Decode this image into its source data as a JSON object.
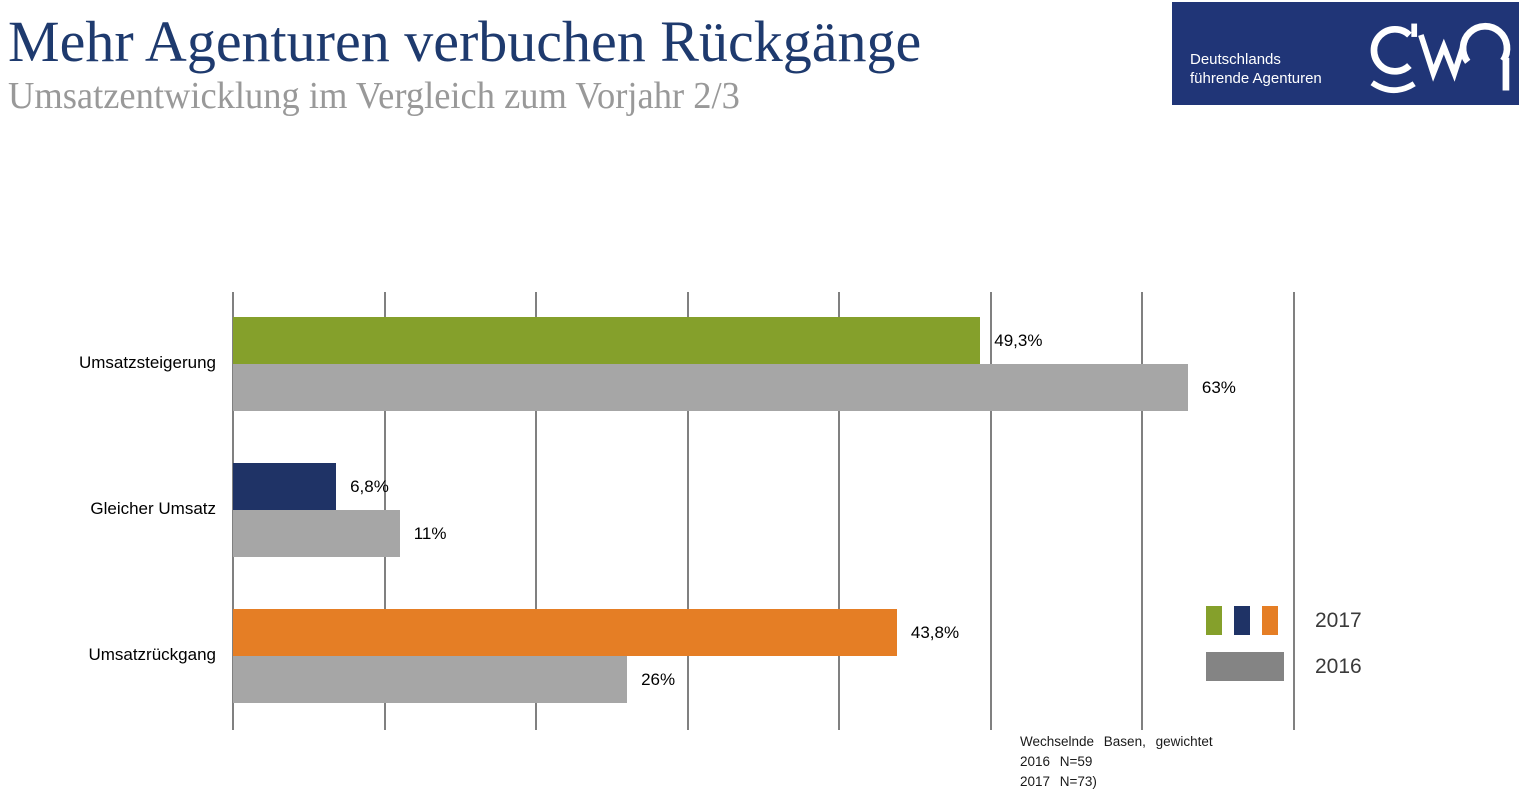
{
  "header": {
    "title": "Mehr Agenturen verbuchen Rückgänge",
    "subtitle": "Umsatzentwicklung im Vergleich zum Vorjahr 2/3"
  },
  "logo": {
    "tagline_line1": "Deutschlands",
    "tagline_line2": "führende Agenturen",
    "brand": "gwa",
    "background_color": "#203577"
  },
  "chart_data": {
    "type": "bar",
    "orientation": "horizontal",
    "title": "Umsatzentwicklung im Vergleich zum Vorjahr",
    "xlabel": "",
    "ylabel": "",
    "xlim": [
      0,
      70
    ],
    "gridline_interval": 10,
    "grid": true,
    "categories": [
      "Umsatzsteigerung",
      "Gleicher Umsatz",
      "Umsatzrückgang"
    ],
    "series": [
      {
        "name": "2017",
        "values": [
          49.3,
          6.8,
          43.8
        ],
        "labels": [
          "49,3%",
          "6,8%",
          "43,8%"
        ],
        "colors": [
          "#85A02B",
          "#1F3366",
          "#E57E25"
        ]
      },
      {
        "name": "2016",
        "values": [
          63,
          11,
          26
        ],
        "labels": [
          "63%",
          "11%",
          "26%"
        ],
        "color": "#A6A6A6"
      }
    ],
    "legend": {
      "position": "right-bottom",
      "items": [
        {
          "label": "2017",
          "swatches": [
            "#85A02B",
            "#1F3366",
            "#E57E25"
          ]
        },
        {
          "label": "2016",
          "swatches": [
            "#848484"
          ]
        }
      ]
    },
    "colors": {
      "gridline": "#808080",
      "value_label": "#000000"
    }
  },
  "footnote": {
    "line1": "Wechselnde Basen, gewichtet",
    "line2": "2016 N=59",
    "line3": "2017 N=73)"
  }
}
